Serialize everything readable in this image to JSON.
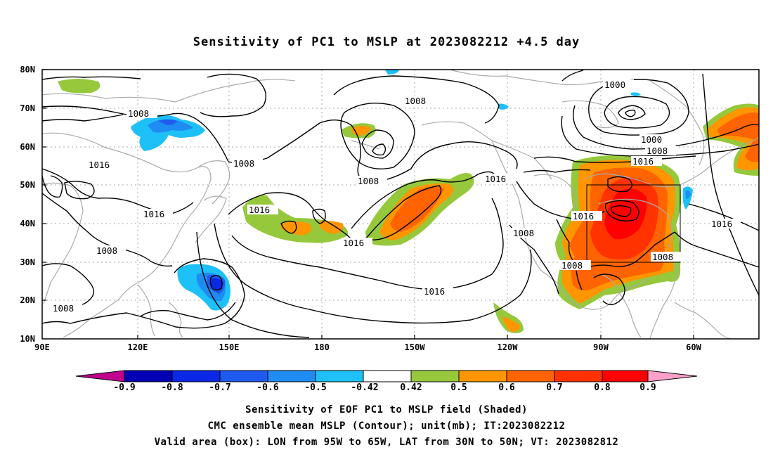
{
  "title": "Sensitivity of PC1 to MSLP at 2023082212 +4.5 day",
  "y_axis_labels": [
    "80N",
    "70N",
    "60N",
    "50N",
    "40N",
    "30N",
    "20N",
    "10N"
  ],
  "x_axis_labels": [
    "90E",
    "120E",
    "150E",
    "180",
    "150W",
    "120W",
    "90W",
    "60W"
  ],
  "colorbar": {
    "labels": [
      "-0.9",
      "-0.8",
      "-0.7",
      "-0.6",
      "-0.5",
      "-0.42",
      "0.42",
      "0.5",
      "0.6",
      "0.7",
      "0.8",
      "0.9"
    ],
    "colors": [
      "#c0008c",
      "#0000b4",
      "#0a28e6",
      "#1e5af0",
      "#1e8cf0",
      "#1ec0f8",
      "#ffffff",
      "#96c83c",
      "#ff9600",
      "#ff6400",
      "#ff3200",
      "#ff0000",
      "#ffa0c8"
    ]
  },
  "contour_labels": {
    "c1008_nw": "1008",
    "c1016_a": "1016",
    "c1016_b": "1016",
    "c1008_c": "1008",
    "c1008_d": "1008",
    "c1008_e": "1008",
    "c1008_f": "1008",
    "c1016_g": "1016",
    "c1016_h": "1016",
    "c1016_i": "1016",
    "c1016_j": "1016",
    "c1000_k": "1000",
    "c1000_l": "1000",
    "c1008_m": "1008",
    "c1016_n": "1016",
    "c1016_o": "1016",
    "c1008_p": "1008",
    "c1008_q": "1008",
    "c1008_r": "1008",
    "c1016_s": "1016",
    "c1008_t": "1008"
  },
  "captions": [
    "Sensitivity of EOF PC1 to MSLP field (Shaded)",
    "CMC ensemble mean MSLP (Contour); unit(mb); IT:2023082212",
    "Valid area (box): LON from 95W to 65W, LAT from 30N to 50N; VT: 2023082812"
  ]
}
